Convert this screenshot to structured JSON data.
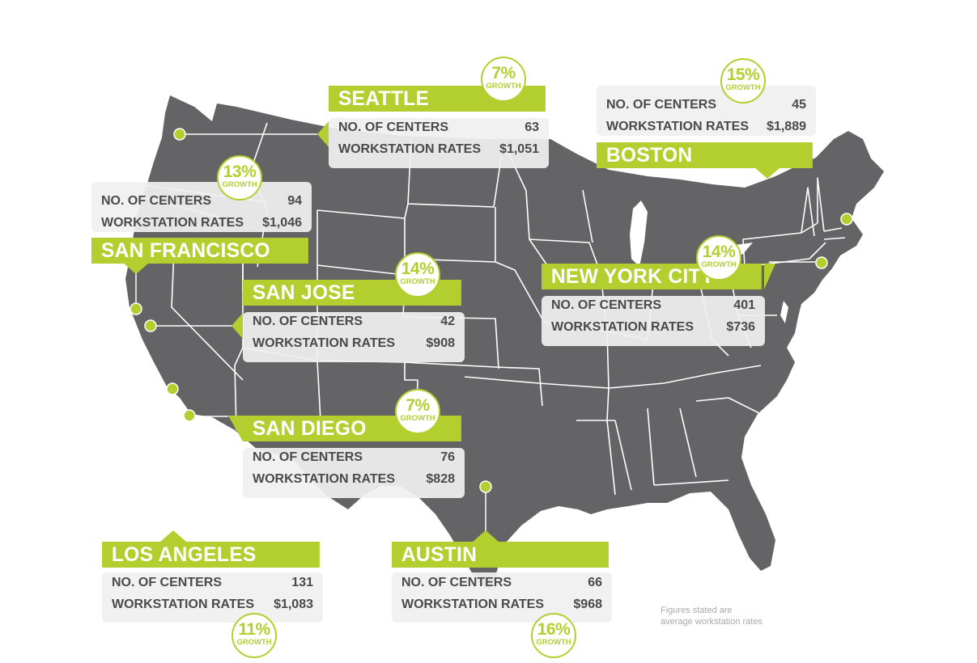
{
  "colors": {
    "map_fill": "#646365",
    "state_border": "#ffffff",
    "accent": "#b3cf2f",
    "panel": "#f0f0f0",
    "text": "#4a4a4a"
  },
  "cities": {
    "seattle": {
      "name": "SEATTLE",
      "centers_label": "NO. OF CENTERS",
      "centers": "63",
      "rates_label": "WORKSTATION RATES",
      "rate": "$1,051",
      "growth": "7%",
      "growth_label": "GROWTH"
    },
    "boston": {
      "name": "BOSTON",
      "centers_label": "NO. OF CENTERS",
      "centers": "45",
      "rates_label": "WORKSTATION RATES",
      "rate": "$1,889",
      "growth": "15%",
      "growth_label": "GROWTH"
    },
    "sf": {
      "name": "SAN FRANCISCO",
      "centers_label": "NO. OF CENTERS",
      "centers": "94",
      "rates_label": "WORKSTATION RATES",
      "rate": "$1,046",
      "growth": "13%",
      "growth_label": "GROWTH"
    },
    "sanjose": {
      "name": "SAN JOSE",
      "centers_label": "NO. OF CENTERS",
      "centers": "42",
      "rates_label": "WORKSTATION RATES",
      "rate": "$908",
      "growth": "14%",
      "growth_label": "GROWTH"
    },
    "nyc": {
      "name": "NEW YORK CITY",
      "centers_label": "NO. OF CENTERS",
      "centers": "401",
      "rates_label": "WORKSTATION RATES",
      "rate": "$736",
      "growth": "14%",
      "growth_label": "GROWTH"
    },
    "sandiego": {
      "name": "SAN DIEGO",
      "centers_label": "NO. OF CENTERS",
      "centers": "76",
      "rates_label": "WORKSTATION RATES",
      "rate": "$828",
      "growth": "7%",
      "growth_label": "GROWTH"
    },
    "la": {
      "name": "LOS ANGELES",
      "centers_label": "NO. OF CENTERS",
      "centers": "131",
      "rates_label": "WORKSTATION RATES",
      "rate": "$1,083",
      "growth": "11%",
      "growth_label": "GROWTH"
    },
    "austin": {
      "name": "AUSTIN",
      "centers_label": "NO. OF CENTERS",
      "centers": "66",
      "rates_label": "WORKSTATION RATES",
      "rate": "$968",
      "growth": "16%",
      "growth_label": "GROWTH"
    }
  },
  "footnote": {
    "line1": "Figures stated are",
    "line2": "average workstation rates"
  }
}
